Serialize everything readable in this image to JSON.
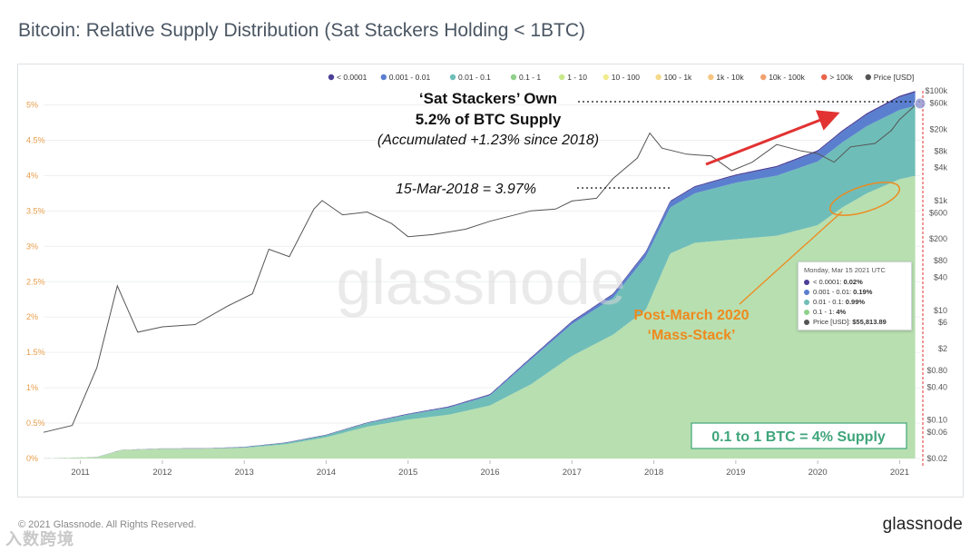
{
  "title": "Bitcoin: Relative Supply Distribution (Sat Stackers Holding < 1BTC)",
  "footer": {
    "copyright": "© 2021 Glassnode. All Rights Reserved.",
    "brand": "glassnode",
    "watermark_text": "入数跨境"
  },
  "colors": {
    "bg": "#ffffff",
    "lt0001": "#4b3f96",
    "c0001_001": "#5b7fcf",
    "c001_01": "#6fbdb8",
    "c01_1": "#b8dfb0",
    "price": "#555555",
    "red_arrow": "#e23232",
    "orange": "#ee8a1e",
    "green_text": "#3fa57b",
    "axis_text_left": "#e79c4a",
    "axis_text_right": "#555555"
  },
  "legend": [
    {
      "label": "< 0.0001",
      "color": "#4b3f96"
    },
    {
      "label": "0.001 - 0.01",
      "color": "#5b7fcf"
    },
    {
      "label": "0.01 - 0.1",
      "color": "#6fbdb8"
    },
    {
      "label": "0.1 - 1",
      "color": "#8fd08a"
    },
    {
      "label": "1 - 10",
      "color": "#c9e88c"
    },
    {
      "label": "10 - 100",
      "color": "#f1ec8e"
    },
    {
      "label": "100 - 1k",
      "color": "#f4d98a"
    },
    {
      "label": "1k - 10k",
      "color": "#f6c57f"
    },
    {
      "label": "10k - 100k",
      "color": "#f1a170"
    },
    {
      "label": "> 100k",
      "color": "#e8634a"
    },
    {
      "label": "Price [USD]",
      "color": "#555555"
    }
  ],
  "annotations": {
    "sat_own_line1": "‘Sat Stackers’ Own",
    "sat_own_line2": "5.2% of BTC Supply",
    "sat_own_line3": "(Accumulated +1.23% since 2018)",
    "mar2018": "15-Mar-2018 = 3.97%",
    "post_march_line1": "Post-March 2020",
    "post_march_line2": "‘Mass-Stack’",
    "boxed": "0.1 to 1 BTC = 4% Supply"
  },
  "tooltip": {
    "date": "Monday, Mar 15 2021 UTC",
    "rows": [
      {
        "label": "< 0.0001:",
        "value": "0.02%",
        "color": "#4b3f96"
      },
      {
        "label": "0.001 - 0.01:",
        "value": "0.19%",
        "color": "#5b7fcf"
      },
      {
        "label": "0.01 - 0.1:",
        "value": "0.99%",
        "color": "#6fbdb8"
      },
      {
        "label": "0.1 - 1:",
        "value": "4%",
        "color": "#8fd08a"
      },
      {
        "label": "Price [USD]:",
        "value": "$55,813.89",
        "color": "#555555"
      }
    ]
  },
  "chart_data": {
    "type": "area",
    "title": "Bitcoin: Relative Supply Distribution (Sat Stackers Holding < 1BTC)",
    "x_ticks": [
      "2011",
      "2012",
      "2013",
      "2014",
      "2015",
      "2016",
      "2017",
      "2018",
      "2019",
      "2020",
      "2021"
    ],
    "x_range": [
      2010.55,
      2021.25
    ],
    "y_left_ticks": [
      "0%",
      "0.5%",
      "1%",
      "1.5%",
      "2%",
      "2.5%",
      "3%",
      "3.5%",
      "4%",
      "4.5%",
      "5%"
    ],
    "y_left_range": [
      0,
      5.2
    ],
    "y_right_ticks": [
      "$0.02",
      "$0.06",
      "$0.10",
      "$0.40",
      "$0.80",
      "$2",
      "$6",
      "$10",
      "$40",
      "$80",
      "$200",
      "$600",
      "$1k",
      "$4k",
      "$8k",
      "$20k",
      "$60k",
      "$100k"
    ],
    "y_right_values": [
      0.02,
      0.06,
      0.1,
      0.4,
      0.8,
      2,
      6,
      10,
      40,
      80,
      200,
      600,
      1000,
      4000,
      8000,
      20000,
      60000,
      100000
    ],
    "y_right_scale": "log",
    "series": [
      {
        "name": "0.1 - 1",
        "x": [
          2010.55,
          2011.2,
          2011.5,
          2012.0,
          2012.5,
          2013.0,
          2013.5,
          2014.0,
          2014.5,
          2015.0,
          2015.5,
          2016.0,
          2016.5,
          2017.0,
          2017.5,
          2017.9,
          2018.2,
          2018.5,
          2019.0,
          2019.5,
          2020.0,
          2020.3,
          2020.6,
          2021.0,
          2021.2
        ],
        "values": [
          0,
          0.02,
          0.12,
          0.14,
          0.14,
          0.15,
          0.2,
          0.3,
          0.45,
          0.55,
          0.62,
          0.75,
          1.05,
          1.45,
          1.75,
          2.1,
          2.9,
          3.05,
          3.1,
          3.15,
          3.3,
          3.55,
          3.75,
          3.95,
          4.0
        ]
      },
      {
        "name": "0.01 - 0.1",
        "x": [
          2010.55,
          2011.2,
          2011.5,
          2012.0,
          2012.5,
          2013.0,
          2013.5,
          2014.0,
          2014.5,
          2015.0,
          2015.5,
          2016.0,
          2016.5,
          2017.0,
          2017.5,
          2017.9,
          2018.2,
          2018.5,
          2019.0,
          2019.5,
          2020.0,
          2020.3,
          2020.6,
          2021.0,
          2021.2
        ],
        "values": [
          0,
          0.0,
          0.0,
          0.0,
          0.0,
          0.01,
          0.02,
          0.03,
          0.05,
          0.07,
          0.1,
          0.14,
          0.35,
          0.45,
          0.52,
          0.75,
          0.65,
          0.7,
          0.8,
          0.85,
          0.9,
          0.92,
          0.95,
          0.98,
          0.99
        ]
      },
      {
        "name": "0.001 - 0.01",
        "x": [
          2010.55,
          2014.0,
          2016.0,
          2017.0,
          2017.9,
          2018.2,
          2019.0,
          2020.0,
          2021.0,
          2021.2
        ],
        "values": [
          0,
          0.0,
          0.01,
          0.03,
          0.06,
          0.08,
          0.1,
          0.14,
          0.18,
          0.19
        ]
      },
      {
        "name": "< 0.0001",
        "x": [
          2010.55,
          2021.2
        ],
        "values": [
          0,
          0.02
        ]
      }
    ],
    "price_series": {
      "name": "Price [USD]",
      "x": [
        2010.55,
        2010.9,
        2011.2,
        2011.45,
        2011.7,
        2012.0,
        2012.4,
        2012.8,
        2013.1,
        2013.3,
        2013.55,
        2013.85,
        2013.95,
        2014.2,
        2014.5,
        2014.8,
        2015.0,
        2015.3,
        2015.7,
        2016.0,
        2016.5,
        2016.8,
        2017.0,
        2017.3,
        2017.5,
        2017.8,
        2017.95,
        2018.1,
        2018.4,
        2018.7,
        2018.95,
        2019.2,
        2019.5,
        2019.8,
        2020.0,
        2020.2,
        2020.4,
        2020.7,
        2020.9,
        2021.0,
        2021.2
      ],
      "values": [
        0.06,
        0.08,
        0.9,
        28,
        4,
        5,
        5.5,
        12,
        20,
        130,
        95,
        700,
        1000,
        550,
        620,
        380,
        220,
        240,
        300,
        420,
        650,
        700,
        980,
        1100,
        2500,
        6000,
        17000,
        9000,
        7000,
        6500,
        3500,
        5000,
        10500,
        8000,
        7200,
        5000,
        9500,
        11000,
        19000,
        30000,
        56000
      ]
    },
    "legend_position": "top-right"
  }
}
